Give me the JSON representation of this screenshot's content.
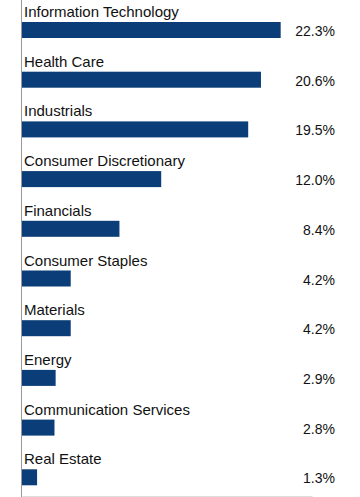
{
  "chart_data": {
    "type": "bar",
    "orientation": "horizontal",
    "categories": [
      "Information Technology",
      "Health Care",
      "Industrials",
      "Consumer Discretionary",
      "Financials",
      "Consumer Staples",
      "Materials",
      "Energy",
      "Communication Services",
      "Real Estate"
    ],
    "values": [
      22.3,
      20.6,
      19.5,
      12.0,
      8.4,
      4.2,
      4.2,
      2.9,
      2.8,
      1.3
    ],
    "value_labels": [
      "22.3%",
      "20.6%",
      "19.5%",
      "12.0%",
      "8.4%",
      "4.2%",
      "4.2%",
      "2.9%",
      "2.8%",
      "1.3%"
    ],
    "color": "#0b3d78",
    "xlim": [
      0,
      25
    ],
    "data_labels": true,
    "tick_labels": false,
    "grid": false
  }
}
